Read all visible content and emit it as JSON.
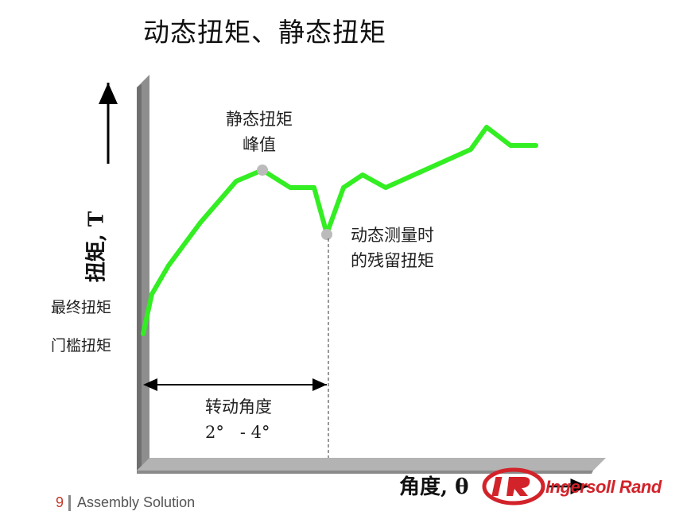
{
  "title": "动态扭矩、静态扭矩",
  "axes": {
    "y_title": "扭矩, T",
    "x_title": "角度, θ"
  },
  "y_levels": {
    "final_torque": "最终扭矩",
    "threshold_torque": "门槛扭矩"
  },
  "annotations": {
    "static_peak_line1": "静态扭矩",
    "static_peak_line2": "峰值",
    "dynamic_residual_line1": "动态测量时",
    "dynamic_residual_line2": "的残留扭矩",
    "rotation_line1": "转动角度",
    "rotation_line2": "2°   - 4°"
  },
  "footer": {
    "page_number": "9",
    "section": "Assembly Solution"
  },
  "logo": {
    "text": "Ingersoll Rand",
    "color": "#d2232a"
  },
  "colors": {
    "curve": "#33ee22",
    "marker": "#bbbbbb",
    "axis_face": "#b3b3b3",
    "axis_shadow": "#7a7a7a"
  }
}
